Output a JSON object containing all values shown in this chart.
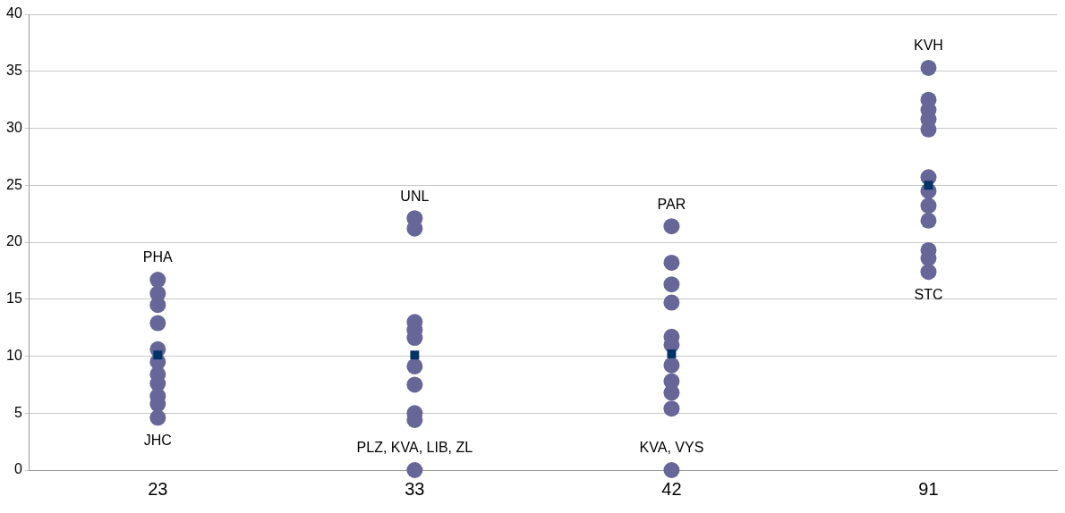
{
  "chart_data": {
    "type": "scatter",
    "categories": [
      "23",
      "33",
      "42",
      "91"
    ],
    "series": [
      {
        "color": "#666699",
        "marker": "circle",
        "x": [
          "23",
          "23",
          "23",
          "23",
          "23",
          "23",
          "23",
          "23",
          "23",
          "23",
          "23",
          "33",
          "33",
          "33",
          "33",
          "33",
          "33",
          "33",
          "33",
          "33",
          "33",
          "42",
          "42",
          "42",
          "42",
          "42",
          "42",
          "42",
          "42",
          "42",
          "42",
          "42",
          "91",
          "91",
          "91",
          "91",
          "91",
          "91",
          "91",
          "91",
          "91",
          "91",
          "91",
          "91"
        ],
        "values": [
          16.7,
          15.5,
          14.5,
          12.9,
          10.6,
          9.5,
          8.4,
          7.6,
          6.5,
          5.8,
          4.6,
          22.1,
          21.2,
          13.0,
          12.3,
          11.6,
          9.1,
          7.5,
          5.0,
          4.4,
          0,
          21.4,
          18.2,
          16.3,
          14.7,
          11.7,
          11.0,
          9.2,
          7.8,
          6.8,
          5.4,
          0,
          35.3,
          32.5,
          31.6,
          30.8,
          29.9,
          25.7,
          24.5,
          23.2,
          21.9,
          19.3,
          18.6,
          17.4
        ]
      },
      {
        "color": "#003366",
        "marker": "square",
        "x": [
          "23",
          "33",
          "42",
          "91"
        ],
        "values": [
          10.1,
          10.1,
          10.2,
          25.0
        ]
      }
    ],
    "ylim": [
      0,
      40
    ],
    "yticks": [
      0,
      5,
      10,
      15,
      20,
      25,
      30,
      35,
      40
    ],
    "grid": "y",
    "annotations": [
      {
        "text": "JHC",
        "x": "23",
        "y": 4.6
      },
      {
        "text": "PHA",
        "x": "23",
        "y": 16.7
      },
      {
        "text": "UNL",
        "x": "33",
        "y": 22.1
      },
      {
        "text": "PLZ, KVA, LIB, ZL",
        "x": "33",
        "y": 0
      },
      {
        "text": "PAR",
        "x": "42",
        "y": 21.4
      },
      {
        "text": "KVA, VYS",
        "x": "42",
        "y": 0
      },
      {
        "text": "KVH",
        "x": "91",
        "y": 35.3
      },
      {
        "text": "STC",
        "x": "91",
        "y": 17.4
      }
    ]
  }
}
